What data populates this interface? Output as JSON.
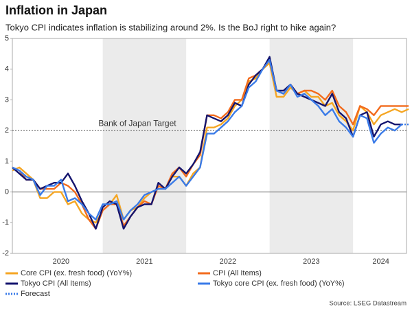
{
  "chart_data": {
    "type": "line",
    "title": "Inflation in Japan",
    "subtitle": "Tokyo CPI indicates inflation is stabilizing around 2%. Is the BoJ right to hike again?",
    "source": "Source: LSEG Datastream",
    "target": {
      "label": "Bank of Japan Target",
      "value": 2
    },
    "categories": [
      null,
      null,
      null,
      null,
      null,
      null,
      null,
      "2020",
      null,
      null,
      null,
      null,
      null,
      null,
      null,
      null,
      null,
      null,
      null,
      "2021",
      null,
      null,
      null,
      null,
      null,
      null,
      null,
      null,
      null,
      null,
      null,
      "2022",
      null,
      null,
      null,
      null,
      null,
      null,
      null,
      null,
      null,
      null,
      null,
      "2023",
      null,
      null,
      null,
      null,
      null,
      null,
      null,
      null,
      null,
      "2024",
      null,
      null,
      null,
      null
    ],
    "ylim": [
      -2,
      5
    ],
    "yticks": [
      -2,
      -1,
      0,
      1,
      2,
      3,
      4,
      5
    ],
    "series": [
      {
        "name": "Core CPI (ex. fresh food) (YoY%)",
        "color": "#f5a623",
        "style": "solid",
        "values": [
          0.7,
          0.8,
          0.6,
          0.4,
          -0.2,
          -0.2,
          0.0,
          0.0,
          -0.4,
          -0.3,
          -0.7,
          -0.9,
          -1.0,
          -0.6,
          -0.4,
          -0.1,
          -0.9,
          -0.6,
          -0.5,
          -0.2,
          0.0,
          0.1,
          0.1,
          0.5,
          0.5,
          0.2,
          0.6,
          0.8,
          2.1,
          2.1,
          2.2,
          2.4,
          2.8,
          3.0,
          3.6,
          3.7,
          4.0,
          4.2,
          3.1,
          3.1,
          3.4,
          3.2,
          3.3,
          3.1,
          3.1,
          2.8,
          2.9,
          2.5,
          2.3,
          2.0,
          2.8,
          2.6,
          2.2,
          2.5,
          2.6,
          2.7,
          2.6,
          2.7
        ]
      },
      {
        "name": "CPI (All Items)",
        "color": "#f26b1d",
        "style": "solid",
        "values": [
          0.8,
          0.7,
          0.4,
          0.4,
          0.1,
          0.1,
          0.1,
          0.3,
          0.2,
          0.0,
          -0.4,
          -0.9,
          -1.2,
          -0.6,
          -0.4,
          -0.4,
          -1.1,
          -0.8,
          -0.5,
          -0.3,
          -0.4,
          0.2,
          0.1,
          0.6,
          0.8,
          0.5,
          0.9,
          1.2,
          2.5,
          2.5,
          2.4,
          2.6,
          3.0,
          3.0,
          3.7,
          3.8,
          4.0,
          4.3,
          3.3,
          3.2,
          3.5,
          3.2,
          3.3,
          3.3,
          3.2,
          3.0,
          3.3,
          2.8,
          2.6,
          2.2,
          2.8,
          2.7,
          2.5,
          2.8,
          2.8,
          2.8,
          2.8,
          2.8
        ]
      },
      {
        "name": "Tokyo CPI (All Items)",
        "color": "#14146e",
        "style": "solid",
        "values": [
          0.8,
          0.6,
          0.4,
          0.4,
          0.1,
          0.2,
          0.3,
          0.3,
          0.6,
          0.2,
          -0.3,
          -0.7,
          -1.2,
          -0.5,
          -0.3,
          -0.4,
          -1.2,
          -0.8,
          -0.5,
          -0.4,
          -0.4,
          0.3,
          0.1,
          0.5,
          0.8,
          0.6,
          0.9,
          1.3,
          2.5,
          2.4,
          2.3,
          2.5,
          2.9,
          2.8,
          3.5,
          3.8,
          4.0,
          4.4,
          3.3,
          3.3,
          3.5,
          3.2,
          3.1,
          3.0,
          2.9,
          2.8,
          3.2,
          2.6,
          2.4,
          1.8,
          2.5,
          2.6,
          1.8,
          2.2,
          2.3,
          2.2,
          2.2,
          null
        ]
      },
      {
        "name": "Tokyo core CPI (ex. fresh food) (YoY%)",
        "color": "#3a7be8",
        "style": "solid",
        "values": [
          0.8,
          0.7,
          0.5,
          0.4,
          -0.1,
          0.2,
          0.2,
          0.4,
          -0.3,
          -0.2,
          -0.4,
          -0.7,
          -0.9,
          -0.4,
          -0.4,
          -0.3,
          -0.9,
          -0.6,
          -0.4,
          -0.1,
          0.0,
          0.1,
          0.1,
          0.3,
          0.5,
          0.2,
          0.5,
          0.8,
          1.9,
          1.9,
          2.1,
          2.3,
          2.6,
          2.8,
          3.4,
          3.6,
          4.0,
          4.3,
          3.3,
          3.2,
          3.5,
          3.1,
          3.2,
          3.0,
          2.8,
          2.5,
          2.7,
          2.3,
          2.1,
          1.8,
          2.5,
          2.4,
          1.6,
          1.9,
          2.1,
          2.0,
          2.2,
          null
        ]
      },
      {
        "name": "Forecast",
        "color": "#3a7be8",
        "style": "dotted",
        "values": [
          null,
          null,
          null,
          null,
          null,
          null,
          null,
          null,
          null,
          null,
          null,
          null,
          null,
          null,
          null,
          null,
          null,
          null,
          null,
          null,
          null,
          null,
          null,
          null,
          null,
          null,
          null,
          null,
          null,
          null,
          null,
          null,
          null,
          null,
          null,
          null,
          null,
          null,
          null,
          null,
          null,
          null,
          null,
          null,
          null,
          null,
          null,
          null,
          null,
          null,
          null,
          null,
          null,
          null,
          null,
          null,
          2.2,
          2.2
        ]
      }
    ]
  }
}
